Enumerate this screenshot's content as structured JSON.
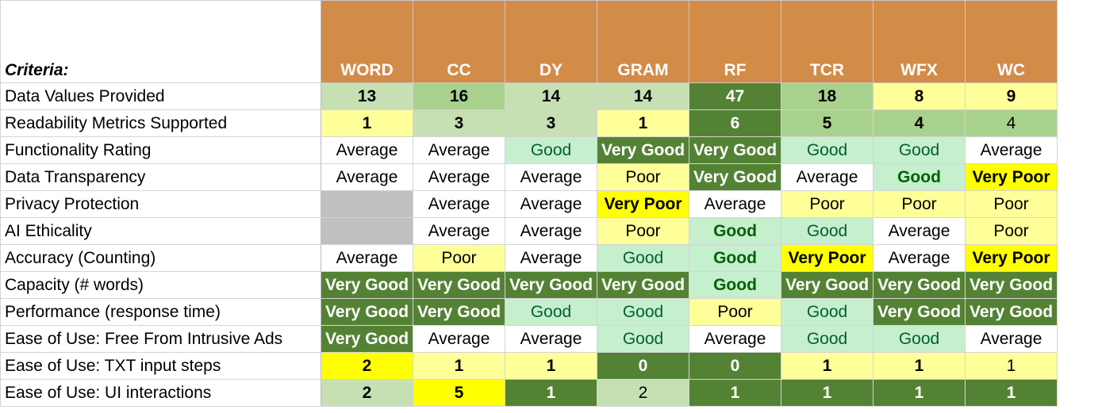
{
  "criteria_title": "Criteria:",
  "tools": [
    "WORD",
    "CC",
    "DY",
    "GRAM",
    "RF",
    "TCR",
    "WFX",
    "WC"
  ],
  "colors": {
    "header": "#d38b48",
    "dark_green": "#548235",
    "medium_green": "#a9d18e",
    "light_green": "#c6e0b4",
    "pale_green": "#c6efce",
    "yellow": "#ffff00",
    "light_yellow": "#ffff99",
    "gray": "#c0c0c0",
    "white": "#ffffff",
    "text_green": "#00612e",
    "text_dark_green": "#006100",
    "text_white": "#ffffff",
    "text_black": "#000000"
  },
  "rows": [
    {
      "label": "Data Values Provided",
      "cells": [
        {
          "v": "13",
          "bg": "#c6e0b4",
          "fg": "#000000",
          "b": true
        },
        {
          "v": "16",
          "bg": "#a9d18e",
          "fg": "#000000",
          "b": true
        },
        {
          "v": "14",
          "bg": "#c6e0b4",
          "fg": "#000000",
          "b": true
        },
        {
          "v": "14",
          "bg": "#c6e0b4",
          "fg": "#000000",
          "b": true
        },
        {
          "v": "47",
          "bg": "#548235",
          "fg": "#ffffff",
          "b": true
        },
        {
          "v": "18",
          "bg": "#a9d18e",
          "fg": "#000000",
          "b": true
        },
        {
          "v": "8",
          "bg": "#ffff99",
          "fg": "#000000",
          "b": true
        },
        {
          "v": "9",
          "bg": "#ffff99",
          "fg": "#000000",
          "b": true
        }
      ]
    },
    {
      "label": "Readability Metrics Supported",
      "cells": [
        {
          "v": "1",
          "bg": "#ffff99",
          "fg": "#000000",
          "b": true
        },
        {
          "v": "3",
          "bg": "#c6e0b4",
          "fg": "#000000",
          "b": true
        },
        {
          "v": "3",
          "bg": "#c6e0b4",
          "fg": "#000000",
          "b": true
        },
        {
          "v": "1",
          "bg": "#ffff99",
          "fg": "#000000",
          "b": true
        },
        {
          "v": "6",
          "bg": "#548235",
          "fg": "#ffffff",
          "b": true
        },
        {
          "v": "5",
          "bg": "#a9d18e",
          "fg": "#000000",
          "b": true
        },
        {
          "v": "4",
          "bg": "#a9d18e",
          "fg": "#000000",
          "b": true
        },
        {
          "v": "4",
          "bg": "#a9d18e",
          "fg": "#000000",
          "b": false
        }
      ]
    },
    {
      "label": "Functionality Rating",
      "cells": [
        {
          "v": "Average",
          "bg": "#ffffff",
          "fg": "#000000",
          "b": false
        },
        {
          "v": "Average",
          "bg": "#ffffff",
          "fg": "#000000",
          "b": false
        },
        {
          "v": "Good",
          "bg": "#c6efce",
          "fg": "#00612e",
          "b": false
        },
        {
          "v": "Very Good",
          "bg": "#548235",
          "fg": "#ffffff",
          "b": true
        },
        {
          "v": "Very Good",
          "bg": "#548235",
          "fg": "#ffffff",
          "b": true
        },
        {
          "v": "Good",
          "bg": "#c6efce",
          "fg": "#00612e",
          "b": false
        },
        {
          "v": "Good",
          "bg": "#c6efce",
          "fg": "#00612e",
          "b": false
        },
        {
          "v": "Average",
          "bg": "#ffffff",
          "fg": "#000000",
          "b": false
        }
      ]
    },
    {
      "label": "Data Transparency",
      "cells": [
        {
          "v": "Average",
          "bg": "#ffffff",
          "fg": "#000000",
          "b": false
        },
        {
          "v": "Average",
          "bg": "#ffffff",
          "fg": "#000000",
          "b": false
        },
        {
          "v": "Average",
          "bg": "#ffffff",
          "fg": "#000000",
          "b": false
        },
        {
          "v": "Poor",
          "bg": "#ffff99",
          "fg": "#000000",
          "b": false
        },
        {
          "v": "Very Good",
          "bg": "#548235",
          "fg": "#ffffff",
          "b": true
        },
        {
          "v": "Average",
          "bg": "#ffffff",
          "fg": "#000000",
          "b": false
        },
        {
          "v": "Good",
          "bg": "#c6efce",
          "fg": "#006100",
          "b": true
        },
        {
          "v": "Very Poor",
          "bg": "#ffff00",
          "fg": "#000000",
          "b": true
        }
      ]
    },
    {
      "label": "Privacy Protection",
      "cells": [
        {
          "v": "",
          "bg": "#c0c0c0",
          "fg": "#000000",
          "b": false
        },
        {
          "v": "Average",
          "bg": "#ffffff",
          "fg": "#000000",
          "b": false
        },
        {
          "v": "Average",
          "bg": "#ffffff",
          "fg": "#000000",
          "b": false
        },
        {
          "v": "Very Poor",
          "bg": "#ffff00",
          "fg": "#000000",
          "b": true
        },
        {
          "v": "Average",
          "bg": "#ffffff",
          "fg": "#000000",
          "b": false
        },
        {
          "v": "Poor",
          "bg": "#ffff99",
          "fg": "#000000",
          "b": false
        },
        {
          "v": "Poor",
          "bg": "#ffff99",
          "fg": "#000000",
          "b": false
        },
        {
          "v": "Poor",
          "bg": "#ffff99",
          "fg": "#000000",
          "b": false
        }
      ]
    },
    {
      "label": "AI Ethicality",
      "cells": [
        {
          "v": "",
          "bg": "#c0c0c0",
          "fg": "#000000",
          "b": false
        },
        {
          "v": "Average",
          "bg": "#ffffff",
          "fg": "#000000",
          "b": false
        },
        {
          "v": "Average",
          "bg": "#ffffff",
          "fg": "#000000",
          "b": false
        },
        {
          "v": "Poor",
          "bg": "#ffff99",
          "fg": "#000000",
          "b": false
        },
        {
          "v": "Good",
          "bg": "#c6efce",
          "fg": "#006100",
          "b": true
        },
        {
          "v": "Good",
          "bg": "#c6efce",
          "fg": "#00612e",
          "b": false
        },
        {
          "v": "Average",
          "bg": "#ffffff",
          "fg": "#000000",
          "b": false
        },
        {
          "v": "Poor",
          "bg": "#ffff99",
          "fg": "#000000",
          "b": false
        }
      ]
    },
    {
      "label": "Accuracy (Counting)",
      "cells": [
        {
          "v": "Average",
          "bg": "#ffffff",
          "fg": "#000000",
          "b": false
        },
        {
          "v": "Poor",
          "bg": "#ffff99",
          "fg": "#000000",
          "b": false
        },
        {
          "v": "Average",
          "bg": "#ffffff",
          "fg": "#000000",
          "b": false
        },
        {
          "v": "Good",
          "bg": "#c6efce",
          "fg": "#00612e",
          "b": false
        },
        {
          "v": "Good",
          "bg": "#c6efce",
          "fg": "#006100",
          "b": true
        },
        {
          "v": "Very Poor",
          "bg": "#ffff00",
          "fg": "#000000",
          "b": true
        },
        {
          "v": "Average",
          "bg": "#ffffff",
          "fg": "#000000",
          "b": false
        },
        {
          "v": "Very Poor",
          "bg": "#ffff00",
          "fg": "#000000",
          "b": true
        }
      ]
    },
    {
      "label": "Capacity (# words)",
      "cells": [
        {
          "v": "Very Good",
          "bg": "#548235",
          "fg": "#ffffff",
          "b": true
        },
        {
          "v": "Very Good",
          "bg": "#548235",
          "fg": "#ffffff",
          "b": true
        },
        {
          "v": "Very Good",
          "bg": "#548235",
          "fg": "#ffffff",
          "b": true
        },
        {
          "v": "Very Good",
          "bg": "#548235",
          "fg": "#ffffff",
          "b": true
        },
        {
          "v": "Good",
          "bg": "#c6efce",
          "fg": "#006100",
          "b": true
        },
        {
          "v": "Very Good",
          "bg": "#548235",
          "fg": "#ffffff",
          "b": true
        },
        {
          "v": "Very Good",
          "bg": "#548235",
          "fg": "#ffffff",
          "b": true
        },
        {
          "v": "Very Good",
          "bg": "#548235",
          "fg": "#ffffff",
          "b": true
        }
      ]
    },
    {
      "label": "Performance (response time)",
      "cells": [
        {
          "v": "Very Good",
          "bg": "#548235",
          "fg": "#ffffff",
          "b": true
        },
        {
          "v": "Very Good",
          "bg": "#548235",
          "fg": "#ffffff",
          "b": true
        },
        {
          "v": "Good",
          "bg": "#c6efce",
          "fg": "#00612e",
          "b": false
        },
        {
          "v": "Good",
          "bg": "#c6efce",
          "fg": "#00612e",
          "b": false
        },
        {
          "v": "Poor",
          "bg": "#ffff99",
          "fg": "#000000",
          "b": false
        },
        {
          "v": "Good",
          "bg": "#c6efce",
          "fg": "#00612e",
          "b": false
        },
        {
          "v": "Very Good",
          "bg": "#548235",
          "fg": "#ffffff",
          "b": true
        },
        {
          "v": "Very Good",
          "bg": "#548235",
          "fg": "#ffffff",
          "b": true
        }
      ]
    },
    {
      "label": "Ease of Use: Free From Intrusive Ads",
      "cells": [
        {
          "v": "Very Good",
          "bg": "#548235",
          "fg": "#ffffff",
          "b": true
        },
        {
          "v": "Average",
          "bg": "#ffffff",
          "fg": "#000000",
          "b": false
        },
        {
          "v": "Average",
          "bg": "#ffffff",
          "fg": "#000000",
          "b": false
        },
        {
          "v": "Good",
          "bg": "#c6efce",
          "fg": "#00612e",
          "b": false
        },
        {
          "v": "Average",
          "bg": "#ffffff",
          "fg": "#000000",
          "b": false
        },
        {
          "v": "Good",
          "bg": "#c6efce",
          "fg": "#00612e",
          "b": false
        },
        {
          "v": "Good",
          "bg": "#c6efce",
          "fg": "#00612e",
          "b": false
        },
        {
          "v": "Average",
          "bg": "#ffffff",
          "fg": "#000000",
          "b": false
        }
      ]
    },
    {
      "label": "Ease of Use: TXT input steps",
      "cells": [
        {
          "v": "2",
          "bg": "#ffff00",
          "fg": "#000000",
          "b": true
        },
        {
          "v": "1",
          "bg": "#ffff99",
          "fg": "#000000",
          "b": true
        },
        {
          "v": "1",
          "bg": "#ffff99",
          "fg": "#000000",
          "b": true
        },
        {
          "v": "0",
          "bg": "#548235",
          "fg": "#ffffff",
          "b": true
        },
        {
          "v": "0",
          "bg": "#548235",
          "fg": "#ffffff",
          "b": true
        },
        {
          "v": "1",
          "bg": "#ffff99",
          "fg": "#000000",
          "b": true
        },
        {
          "v": "1",
          "bg": "#ffff99",
          "fg": "#000000",
          "b": true
        },
        {
          "v": "1",
          "bg": "#ffff99",
          "fg": "#000000",
          "b": false
        }
      ]
    },
    {
      "label": "Ease of Use: UI interactions",
      "cells": [
        {
          "v": "2",
          "bg": "#c6e0b4",
          "fg": "#000000",
          "b": true
        },
        {
          "v": "5",
          "bg": "#ffff00",
          "fg": "#000000",
          "b": true
        },
        {
          "v": "1",
          "bg": "#548235",
          "fg": "#ffffff",
          "b": true
        },
        {
          "v": "2",
          "bg": "#c6e0b4",
          "fg": "#000000",
          "b": false
        },
        {
          "v": "1",
          "bg": "#548235",
          "fg": "#ffffff",
          "b": true
        },
        {
          "v": "1",
          "bg": "#548235",
          "fg": "#ffffff",
          "b": true
        },
        {
          "v": "1",
          "bg": "#548235",
          "fg": "#ffffff",
          "b": true
        },
        {
          "v": "1",
          "bg": "#548235",
          "fg": "#ffffff",
          "b": true
        }
      ]
    }
  ]
}
